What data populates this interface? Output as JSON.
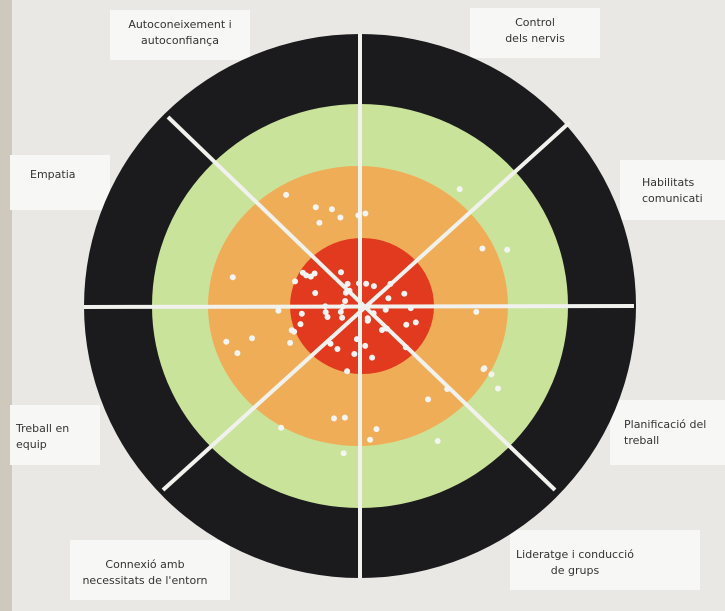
{
  "labels": [
    {
      "lines": [
        "Autoconeixement i",
        "autoconfiança"
      ]
    },
    {
      "lines": [
        "Control",
        "dels nervis"
      ]
    },
    {
      "lines": [
        "Empatia"
      ]
    },
    {
      "lines": [
        "Habilitats",
        "comunicati"
      ]
    },
    {
      "lines": [
        "Treball en",
        "equip"
      ]
    },
    {
      "lines": [
        "Planificació del",
        "treball"
      ]
    },
    {
      "lines": [
        "Connexió  amb",
        "necessitats de l'entorn"
      ]
    },
    {
      "lines": [
        "Lideratge i conducció",
        "de grups"
      ]
    }
  ]
}
